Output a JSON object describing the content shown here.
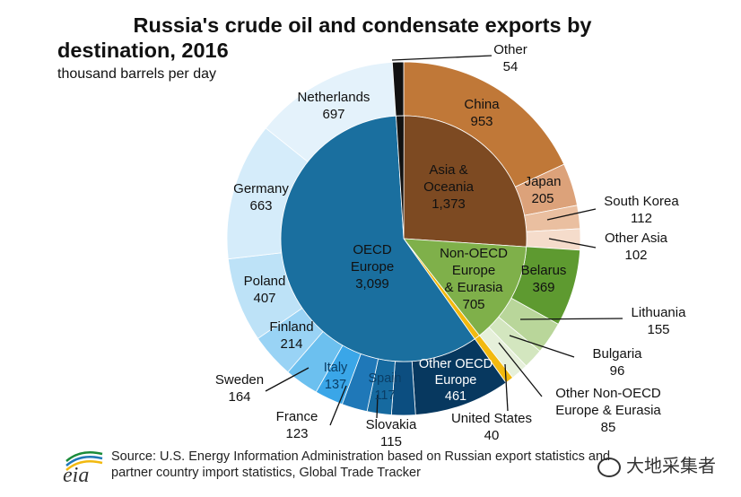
{
  "title_line1": "Russia's crude oil and condensate exports by",
  "title_line2": "destination, 2016",
  "subtitle": "thousand barrels per day",
  "source_line1": "Source: U.S. Energy Information Administration based on Russian export statistics and",
  "source_line2": "partner country import statistics, Global Trade Tracker",
  "logo_text": "eia",
  "watermark": "大地采集者",
  "colors": {
    "asia_inner": "#7d4a22",
    "china": "#c07838",
    "japan": "#dca27a",
    "south_korea": "#eabfa0",
    "other_asia": "#f5dccb",
    "nonoecd_inner": "#7fb04a",
    "belarus": "#5e9a30",
    "lithuania": "#b9d69a",
    "bulgaria": "#d3e6bf",
    "other_nonoecd": "#e6f0da",
    "us": "#f2b90f",
    "other": "#111111",
    "oecd_inner": "#1a6f9f",
    "other_oecd": "#07385f",
    "slovakia": "#0c4e80",
    "spain": "#166aa0",
    "france": "#1f78b8",
    "italy": "#3aa6e8",
    "sweden": "#6cc0ef",
    "finland": "#99d3f5",
    "poland": "#bde2f7",
    "germany": "#d5ecfa",
    "netherlands": "#e4f2fb"
  },
  "chart_data": {
    "type": "pie",
    "title": "Russia's crude oil and condensate exports by destination, 2016",
    "unit": "thousand barrels per day",
    "inner": [
      {
        "name": "Asia & Oceania",
        "value": 1373
      },
      {
        "name": "Non-OECD Europe & Eurasia",
        "value": 705
      },
      {
        "name": "United States",
        "value": 40
      },
      {
        "name": "OECD Europe",
        "value": 3099
      },
      {
        "name": "Other",
        "value": 54
      }
    ],
    "outer": [
      {
        "name": "China",
        "value": 953
      },
      {
        "name": "Japan",
        "value": 205
      },
      {
        "name": "South Korea",
        "value": 112
      },
      {
        "name": "Other Asia",
        "value": 102
      },
      {
        "name": "Belarus",
        "value": 369
      },
      {
        "name": "Lithuania",
        "value": 155
      },
      {
        "name": "Bulgaria",
        "value": 96
      },
      {
        "name": "Other Non-OECD Europe & Eurasia",
        "value": 85
      },
      {
        "name": "United States",
        "value": 40
      },
      {
        "name": "Other OECD Europe",
        "value": 461
      },
      {
        "name": "Slovakia",
        "value": 115
      },
      {
        "name": "Spain",
        "value": 117
      },
      {
        "name": "France",
        "value": 123
      },
      {
        "name": "Italy",
        "value": 137
      },
      {
        "name": "Sweden",
        "value": 164
      },
      {
        "name": "Finland",
        "value": 214
      },
      {
        "name": "Poland",
        "value": 407
      },
      {
        "name": "Germany",
        "value": 663
      },
      {
        "name": "Netherlands",
        "value": 697
      },
      {
        "name": "Other",
        "value": 54
      }
    ],
    "labels": {
      "asia": [
        "Asia &",
        "Oceania",
        "1,373"
      ],
      "nonoecd": [
        "Non-OECD",
        "Europe",
        "& Eurasia",
        "705"
      ],
      "oecd": [
        "OECD",
        "Europe",
        "3,099"
      ],
      "china": [
        "China",
        "953"
      ],
      "japan": [
        "Japan",
        "205"
      ],
      "south_korea": [
        "South Korea",
        "112"
      ],
      "other_asia": [
        "Other Asia",
        "102"
      ],
      "belarus": [
        "Belarus",
        "369"
      ],
      "lithuania": [
        "Lithuania",
        "155"
      ],
      "bulgaria": [
        "Bulgaria",
        "96"
      ],
      "other_nonoecd": [
        "Other Non-OECD",
        "Europe & Eurasia",
        "85"
      ],
      "us": [
        "United States",
        "40"
      ],
      "other_oecd": [
        "Other OECD",
        "Europe",
        "461"
      ],
      "slovakia": [
        "Slovakia",
        "115"
      ],
      "spain": [
        "Spain",
        "117"
      ],
      "france": [
        "France",
        "123"
      ],
      "italy": [
        "Italy",
        "137"
      ],
      "sweden": [
        "Sweden",
        "164"
      ],
      "finland": [
        "Finland",
        "214"
      ],
      "poland": [
        "Poland",
        "407"
      ],
      "germany": [
        "Germany",
        "663"
      ],
      "netherlands": [
        "Netherlands",
        "697"
      ],
      "other": [
        "Other",
        "54"
      ]
    }
  }
}
